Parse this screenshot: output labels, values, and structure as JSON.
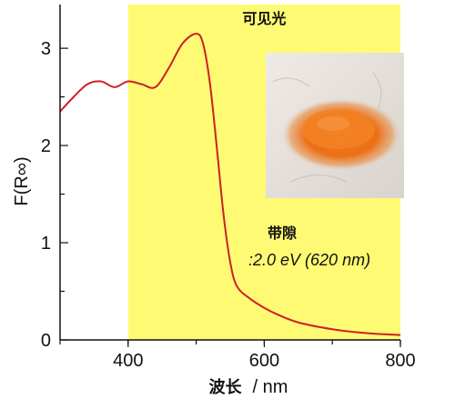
{
  "chart_data": {
    "type": "line",
    "xlabel_main": "波长",
    "xlabel_unit": "/ nm",
    "ylabel": "F(R∞)",
    "xlim": [
      300,
      800
    ],
    "ylim": [
      0,
      3.45
    ],
    "xticks": [
      400,
      600,
      800
    ],
    "yticks": [
      0,
      1,
      2,
      3
    ],
    "grid": false,
    "highlight": {
      "label": "可见光",
      "x_range": [
        400,
        800
      ],
      "color": "#fffa73"
    },
    "annotation": {
      "title": "带隙",
      "value": ":2.0 eV (620 nm)"
    },
    "photo": {
      "description": "orange-powder-photo"
    },
    "series": [
      {
        "color": "#cc1f2a",
        "x": [
          300,
          320,
          340,
          360,
          380,
          400,
          420,
          440,
          460,
          480,
          500,
          510,
          520,
          530,
          540,
          550,
          560,
          580,
          600,
          620,
          650,
          700,
          750,
          800
        ],
        "y": [
          2.35,
          2.5,
          2.63,
          2.66,
          2.6,
          2.66,
          2.63,
          2.6,
          2.8,
          3.05,
          3.15,
          3.05,
          2.65,
          2.0,
          1.3,
          0.8,
          0.55,
          0.42,
          0.33,
          0.26,
          0.18,
          0.11,
          0.07,
          0.05
        ]
      }
    ]
  }
}
